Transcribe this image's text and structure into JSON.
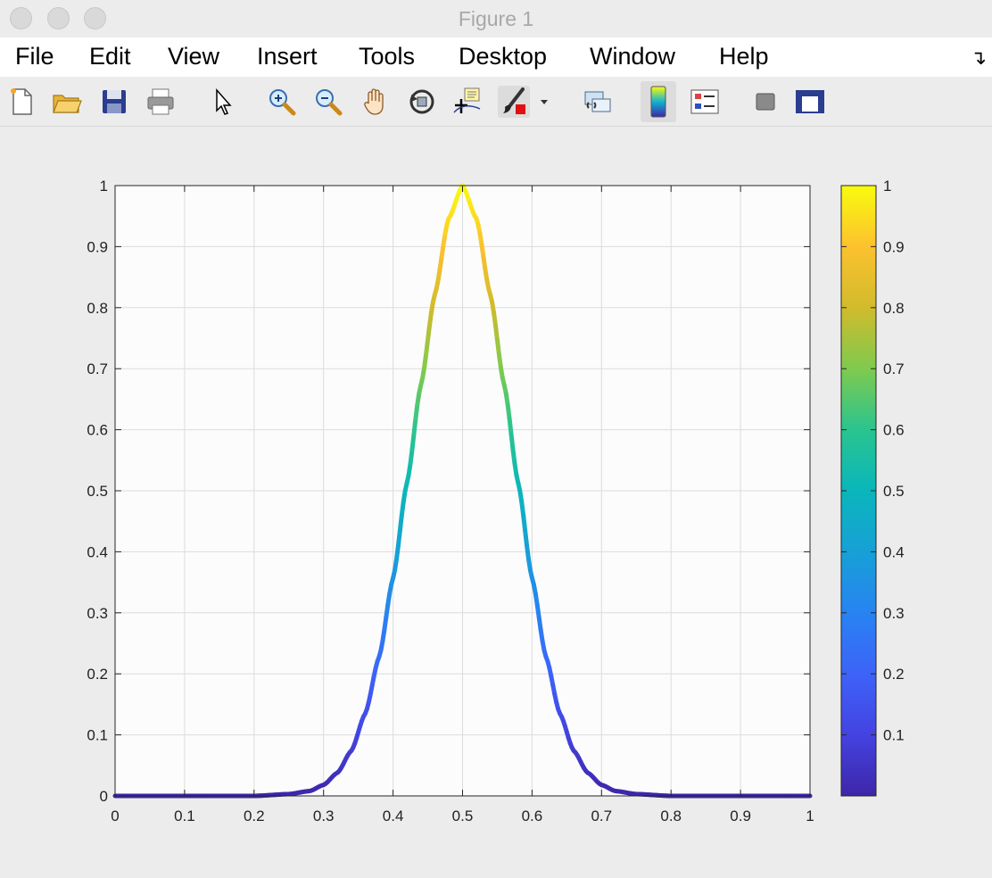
{
  "window": {
    "title": "Figure 1"
  },
  "menu": {
    "items": [
      "File",
      "Edit",
      "View",
      "Insert",
      "Tools",
      "Desktop",
      "Window",
      "Help"
    ]
  },
  "toolbar": {
    "buttons": [
      {
        "icon": "new-figure-icon"
      },
      {
        "icon": "open-file-icon"
      },
      {
        "icon": "save-figure-icon"
      },
      {
        "icon": "print-figure-icon"
      },
      {
        "icon": "edit-plot-arrow-icon"
      },
      {
        "icon": "zoom-in-icon"
      },
      {
        "icon": "zoom-out-icon"
      },
      {
        "icon": "pan-hand-icon"
      },
      {
        "icon": "rotate-3d-icon"
      },
      {
        "icon": "data-cursor-icon"
      },
      {
        "icon": "brush-icon"
      },
      {
        "icon": "brush-dropdown-icon"
      },
      {
        "icon": "link-plot-icon"
      },
      {
        "icon": "insert-colorbar-icon"
      },
      {
        "icon": "insert-legend-icon"
      },
      {
        "icon": "hide-plot-tools-icon"
      },
      {
        "icon": "show-plot-tools-icon"
      }
    ]
  },
  "chart_data": {
    "type": "line",
    "title": "",
    "xlabel": "",
    "ylabel": "",
    "xlim": [
      0,
      1
    ],
    "ylim": [
      0,
      1
    ],
    "grid": true,
    "x_ticks": [
      "0",
      "0.1",
      "0.2",
      "0.3",
      "0.4",
      "0.5",
      "0.6",
      "0.7",
      "0.8",
      "0.9",
      "1"
    ],
    "y_ticks": [
      "0",
      "0.1",
      "0.2",
      "0.3",
      "0.4",
      "0.5",
      "0.6",
      "0.7",
      "0.8",
      "0.9",
      "1"
    ],
    "colormap": "parula",
    "color_by": "y",
    "series": [
      {
        "x": [
          0,
          0.05,
          0.1,
          0.15,
          0.2,
          0.25,
          0.28,
          0.3,
          0.32,
          0.34,
          0.36,
          0.38,
          0.4,
          0.42,
          0.44,
          0.46,
          0.48,
          0.5,
          0.52,
          0.54,
          0.56,
          0.58,
          0.6,
          0.62,
          0.64,
          0.66,
          0.68,
          0.7,
          0.72,
          0.75,
          0.8,
          0.85,
          0.9,
          0.95,
          1
        ],
        "y": [
          0,
          0,
          0,
          0,
          0,
          0.003,
          0.008,
          0.018,
          0.038,
          0.074,
          0.135,
          0.228,
          0.357,
          0.513,
          0.673,
          0.821,
          0.946,
          1,
          0.946,
          0.821,
          0.673,
          0.513,
          0.357,
          0.228,
          0.135,
          0.074,
          0.038,
          0.018,
          0.008,
          0.003,
          0,
          0,
          0,
          0,
          0
        ]
      }
    ],
    "colorbar": {
      "location": "right",
      "range": [
        0,
        1
      ],
      "ticks": [
        "0.1",
        "0.2",
        "0.3",
        "0.4",
        "0.5",
        "0.6",
        "0.7",
        "0.8",
        "0.9",
        "1"
      ]
    }
  }
}
